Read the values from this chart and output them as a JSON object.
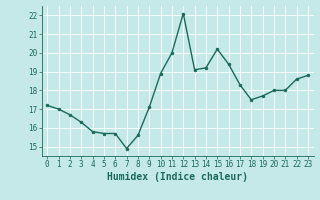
{
  "x": [
    0,
    1,
    2,
    3,
    4,
    5,
    6,
    7,
    8,
    9,
    10,
    11,
    12,
    13,
    14,
    15,
    16,
    17,
    18,
    19,
    20,
    21,
    22,
    23
  ],
  "y": [
    17.2,
    17.0,
    16.7,
    16.3,
    15.8,
    15.7,
    15.7,
    14.9,
    15.6,
    17.1,
    18.9,
    20.0,
    22.1,
    19.1,
    19.2,
    20.2,
    19.4,
    18.3,
    17.5,
    17.7,
    18.0,
    18.0,
    18.6,
    18.8
  ],
  "line_color": "#1a6b5a",
  "marker": "o",
  "markersize": 2.0,
  "linewidth": 1.0,
  "xlabel": "Humidex (Indice chaleur)",
  "xlim": [
    -0.5,
    23.5
  ],
  "ylim": [
    14.5,
    22.5
  ],
  "yticks": [
    15,
    16,
    17,
    18,
    19,
    20,
    21,
    22
  ],
  "xticks": [
    0,
    1,
    2,
    3,
    4,
    5,
    6,
    7,
    8,
    9,
    10,
    11,
    12,
    13,
    14,
    15,
    16,
    17,
    18,
    19,
    20,
    21,
    22,
    23
  ],
  "bg_color": "#c5e8e8",
  "grid_color": "#ffffff",
  "tick_color": "#1a6b5a",
  "label_color": "#1a6b5a",
  "xlabel_fontsize": 7,
  "tick_fontsize": 5.5
}
